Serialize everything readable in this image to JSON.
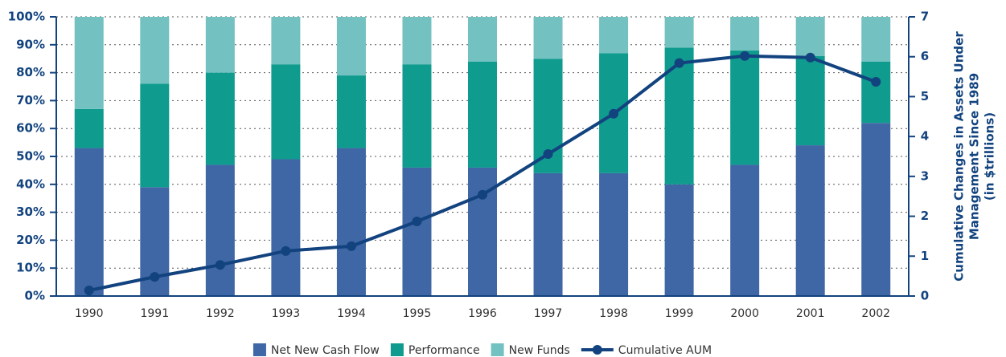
{
  "chart_data": {
    "type": "bar",
    "stacked": true,
    "categories": [
      "1990",
      "1991",
      "1992",
      "1993",
      "1994",
      "1995",
      "1996",
      "1997",
      "1998",
      "1999",
      "2000",
      "2001",
      "2002"
    ],
    "series": [
      {
        "name": "Net New Cash Flow",
        "color": "#3f67a5",
        "values": [
          53,
          39,
          47,
          49,
          53,
          46,
          46,
          44,
          44,
          40,
          47,
          54,
          62
        ]
      },
      {
        "name": "Performance",
        "color": "#0f9b8e",
        "values": [
          14,
          37,
          33,
          34,
          26,
          37,
          38,
          41,
          43,
          49,
          41,
          32,
          22
        ]
      },
      {
        "name": "New Funds",
        "color": "#73c1c0",
        "values": [
          33,
          24,
          20,
          17,
          21,
          17,
          16,
          15,
          13,
          11,
          12,
          14,
          16
        ]
      },
      {
        "name": "Cumulative AUM",
        "color": "#12437f",
        "type": "line",
        "axis": "y2",
        "values": [
          0.14,
          0.48,
          0.78,
          1.13,
          1.25,
          1.87,
          2.54,
          3.56,
          4.57,
          5.84,
          6.02,
          5.98,
          5.37
        ]
      }
    ],
    "ylim": [
      0,
      100
    ],
    "yticks": [
      {
        "value": 0,
        "label": "0%"
      },
      {
        "value": 10,
        "label": "10%"
      },
      {
        "value": 20,
        "label": "20%"
      },
      {
        "value": 30,
        "label": "30%"
      },
      {
        "value": 40,
        "label": "40%"
      },
      {
        "value": 50,
        "label": "50%"
      },
      {
        "value": 60,
        "label": "60%"
      },
      {
        "value": 70,
        "label": "70%"
      },
      {
        "value": 80,
        "label": "80%"
      },
      {
        "value": 90,
        "label": "90%"
      },
      {
        "value": 100,
        "label": "100%"
      }
    ],
    "y2lim": [
      0,
      7
    ],
    "y2ticks": [
      0,
      1,
      2,
      3,
      4,
      5,
      6,
      7
    ],
    "y2label": [
      "Cumulative Changes in Assets Under",
      "Management Since 1989",
      "(in $trillions)"
    ],
    "grid": true,
    "legend": "bottom"
  }
}
